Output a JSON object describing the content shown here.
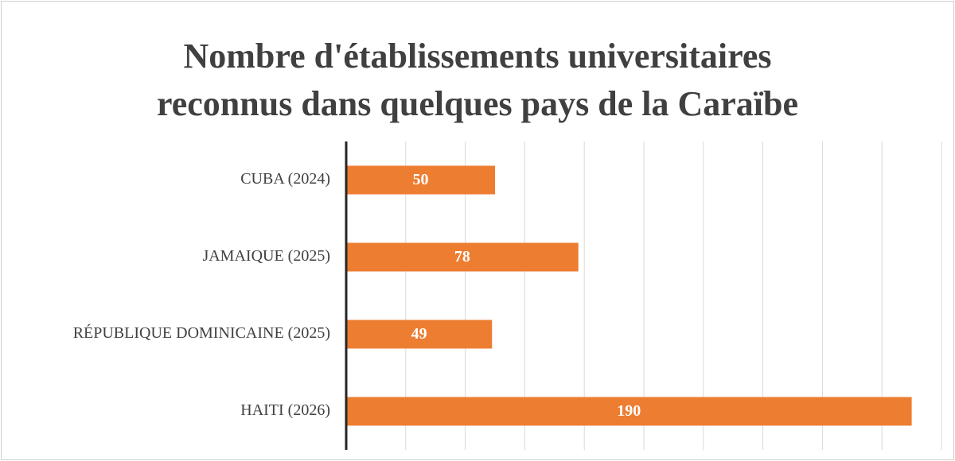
{
  "chart_data": {
    "type": "bar",
    "orientation": "horizontal",
    "title": [
      "Nombre d'établissements universitaires",
      "reconnus dans quelques pays de la Caraïbe"
    ],
    "categories": [
      "CUBA (2024)",
      "JAMAIQUE (2025)",
      "RÉPUBLIQUE DOMINICAINE (2025)",
      "HAITI (2026)"
    ],
    "values": [
      50,
      78,
      49,
      190
    ],
    "color": "#ed7d31",
    "xlim": [
      0,
      200
    ],
    "xticks": [
      0,
      20,
      40,
      60,
      80,
      100,
      120,
      140,
      160,
      180,
      200
    ],
    "grid": true
  }
}
